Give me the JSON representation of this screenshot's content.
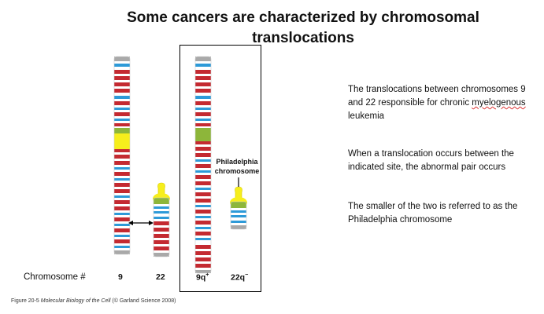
{
  "title": "Some cancers are characterized by chromosomal translocations",
  "label_philadelphia": "Philadelphia chromosome",
  "text": {
    "p1_before": "The translocations between chromosomes 9 and 22 responsible for chronic ",
    "p1_word": "myelogenous",
    "p1_after": " leukemia",
    "p2": "When a translocation occurs between the indicated site, the abnormal pair occurs",
    "p3": "The smaller of the two is referred to as the Philadelphia chromosome"
  },
  "chromosome_row": {
    "label": "Chromosome #",
    "c9": "9",
    "c22": "22",
    "c9q": "9q",
    "c9q_sup": "+",
    "c22q": "22q",
    "c22q_sup": "−"
  },
  "credit": {
    "prefix": "Figure 20-5 ",
    "book": "Molecular Biology of the Cell",
    "suffix": " (© Garland Science 2008)"
  },
  "colors": {
    "red": "#c42a31",
    "blue": "#2d9ad8",
    "yellow": "#f6ee1c",
    "green": "#8db63a",
    "grey": "#a9a9a9"
  }
}
